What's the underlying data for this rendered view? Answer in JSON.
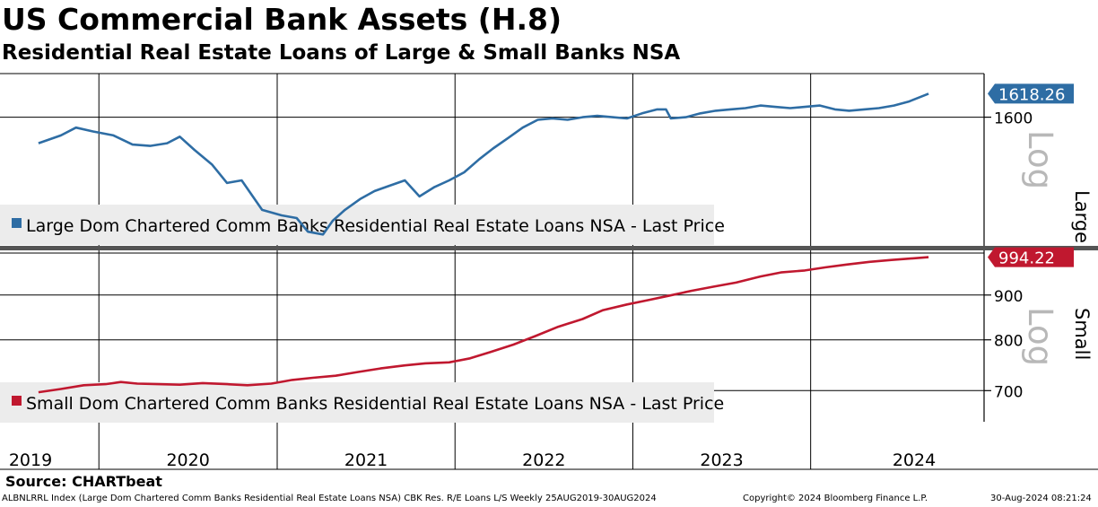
{
  "title": "US Commercial Bank Assets (H.8)",
  "subtitle": "Residential Real Estate Loans of Large & Small Banks NSA",
  "source": "Source: CHARTbeat",
  "footer": {
    "left": "ALBNLRRL Index (Large Dom Chartered Comm Banks Residential Real Estate Loans NSA) CBK Res. R/E Loans L/S  Weekly 25AUG2019-30AUG2024",
    "center": "Copyright© 2024 Bloomberg Finance L.P.",
    "right": "30-Aug-2024 08:21:24"
  },
  "colors": {
    "large": "#2e6da4",
    "small": "#c0182f",
    "legend_bg": "#ececec",
    "grid": "#000000"
  },
  "chart_data": [
    {
      "type": "line",
      "panel": "Large",
      "scale": "log",
      "scale_label": "Log",
      "side_label": "Large",
      "legend": "Large Dom Chartered Comm Banks Residential Real Estate Loans NSA - Last Price",
      "last_value": "1618.26",
      "yticks": [
        1600
      ],
      "ylim": [
        1505,
        1634
      ],
      "x": [
        "2019-08-30",
        "2019-10-15",
        "2019-11-15",
        "2019-12-20",
        "2020-01-31",
        "2020-03-10",
        "2020-04-15",
        "2020-05-20",
        "2020-06-15",
        "2020-07-15",
        "2020-08-20",
        "2020-09-20",
        "2020-10-20",
        "2020-12-01",
        "2021-01-10",
        "2021-02-10",
        "2021-03-05",
        "2021-04-05",
        "2021-04-25",
        "2021-05-20",
        "2021-06-20",
        "2021-07-20",
        "2021-08-20",
        "2021-09-20",
        "2021-10-20",
        "2021-11-20",
        "2021-12-20",
        "2022-01-20",
        "2022-02-20",
        "2022-03-20",
        "2022-04-20",
        "2022-05-20",
        "2022-06-20",
        "2022-07-20",
        "2022-08-20",
        "2022-09-20",
        "2022-10-20",
        "2022-11-20",
        "2022-12-20",
        "2023-01-20",
        "2023-02-20",
        "2023-03-10",
        "2023-03-20",
        "2023-04-20",
        "2023-05-20",
        "2023-06-20",
        "2023-07-20",
        "2023-08-20",
        "2023-09-20",
        "2023-10-20",
        "2023-11-20",
        "2023-12-20",
        "2024-01-20",
        "2024-02-20",
        "2024-03-20",
        "2024-04-20",
        "2024-05-20",
        "2024-06-20",
        "2024-07-20",
        "2024-08-30"
      ],
      "series": [
        {
          "values": [
            1580,
            1586,
            1592,
            1589,
            1586,
            1579,
            1578,
            1580,
            1585,
            1575,
            1564,
            1550,
            1552,
            1530,
            1526,
            1524,
            1514,
            1512,
            1522,
            1530,
            1538,
            1544,
            1548,
            1552,
            1540,
            1547,
            1552,
            1558,
            1568,
            1576,
            1584,
            1592,
            1598,
            1599,
            1598,
            1600,
            1601,
            1600,
            1599,
            1603,
            1606,
            1606,
            1599,
            1600,
            1603,
            1605,
            1606,
            1607,
            1609,
            1608,
            1607,
            1608,
            1609,
            1606,
            1605,
            1606,
            1607,
            1609,
            1612,
            1618.26
          ]
        }
      ]
    },
    {
      "type": "line",
      "panel": "Small",
      "scale": "log",
      "scale_label": "Log",
      "side_label": "Small",
      "legend": "Small Dom Chartered Comm Banks Residential Real Estate Loans NSA - Last Price",
      "last_value": "994.22",
      "yticks": [
        700,
        800,
        900
      ],
      "ylim": [
        645,
        1005
      ],
      "x": [
        "2019-08-30",
        "2019-10-15",
        "2019-12-01",
        "2020-01-15",
        "2020-02-15",
        "2020-03-20",
        "2020-05-01",
        "2020-06-15",
        "2020-08-01",
        "2020-09-20",
        "2020-11-01",
        "2020-12-20",
        "2021-02-01",
        "2021-03-15",
        "2021-05-01",
        "2021-06-15",
        "2021-08-01",
        "2021-09-20",
        "2021-11-01",
        "2021-12-20",
        "2022-02-01",
        "2022-03-15",
        "2022-05-01",
        "2022-06-15",
        "2022-08-01",
        "2022-09-20",
        "2022-11-01",
        "2022-12-20",
        "2023-02-01",
        "2023-03-15",
        "2023-05-01",
        "2023-06-15",
        "2023-08-01",
        "2023-09-20",
        "2023-11-01",
        "2023-12-20",
        "2024-02-01",
        "2024-03-15",
        "2024-05-01",
        "2024-06-15",
        "2024-08-30"
      ],
      "series": [
        {
          "values": [
            697,
            703,
            710,
            712,
            716,
            713,
            712,
            711,
            714,
            712,
            710,
            713,
            720,
            724,
            728,
            735,
            742,
            748,
            752,
            754,
            762,
            775,
            790,
            808,
            828,
            845,
            865,
            878,
            888,
            898,
            910,
            920,
            930,
            945,
            955,
            960,
            968,
            975,
            982,
            987,
            994.22
          ]
        }
      ]
    }
  ],
  "xaxis": {
    "labels": [
      "2019",
      "2020",
      "2021",
      "2022",
      "2023",
      "2024"
    ]
  }
}
